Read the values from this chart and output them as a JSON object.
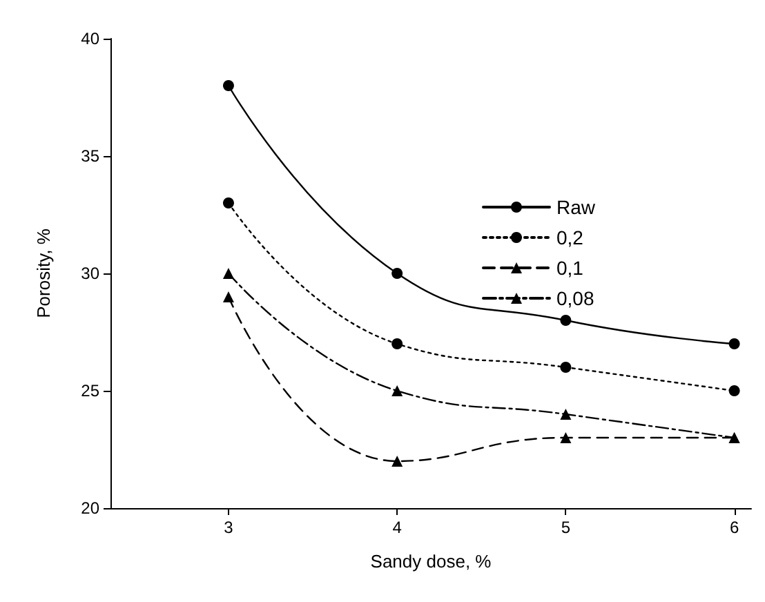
{
  "chart_data": {
    "type": "line",
    "xlabel": "Sandy dose, %",
    "ylabel": "Porosity, %",
    "x": [
      3,
      4,
      5,
      6
    ],
    "series": [
      {
        "name": "Raw",
        "color": "#000000",
        "values": [
          38,
          30,
          28,
          27
        ],
        "marker": "circle",
        "line_style": "solid"
      },
      {
        "name": "0,2",
        "color": "#000000",
        "values": [
          33,
          27,
          26,
          25
        ],
        "marker": "circle",
        "line_style": "dotted"
      },
      {
        "name": "0,1",
        "color": "#000000",
        "values": [
          29,
          22,
          23,
          23
        ],
        "marker": "triangle",
        "line_style": "dashed"
      },
      {
        "name": "0,08",
        "color": "#000000",
        "values": [
          30,
          25,
          24,
          23
        ],
        "marker": "triangle",
        "line_style": "dashdot"
      }
    ],
    "xlim": [
      2.3,
      6.1
    ],
    "xticks": [
      3,
      4,
      5,
      6
    ],
    "ylim": [
      20,
      40
    ],
    "yticks": [
      20,
      25,
      30,
      35,
      40
    ],
    "grid": false,
    "legend": "top right"
  }
}
